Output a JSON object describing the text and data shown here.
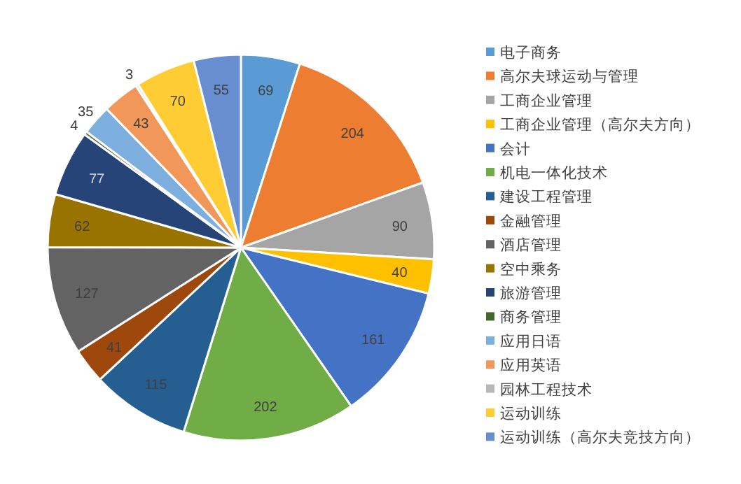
{
  "chart_data": {
    "type": "pie",
    "categories": [
      "电子商务",
      "高尔夫球运动与管理",
      "工商企业管理",
      "工商企业管理（高尔夫方向）",
      "会计",
      "机电一体化技术",
      "建设工程管理",
      "金融管理",
      "酒店管理",
      "空中乘务",
      "旅游管理",
      "商务管理",
      "应用日语",
      "应用英语",
      "园林工程技术",
      "运动训练",
      "运动训练（高尔夫竞技方向）"
    ],
    "values": [
      69,
      204,
      90,
      40,
      161,
      202,
      115,
      41,
      127,
      62,
      77,
      4,
      35,
      43,
      3,
      70,
      55
    ],
    "colors": [
      "#5b9bd5",
      "#ed7d31",
      "#a5a5a5",
      "#ffc000",
      "#4472c4",
      "#70ad47",
      "#255e91",
      "#9e480e",
      "#636363",
      "#997300",
      "#264478",
      "#43682b",
      "#7cafdd",
      "#f1975a",
      "#b7b7b7",
      "#ffcd33",
      "#698ed0"
    ],
    "data_labels": true,
    "legend": "right"
  }
}
